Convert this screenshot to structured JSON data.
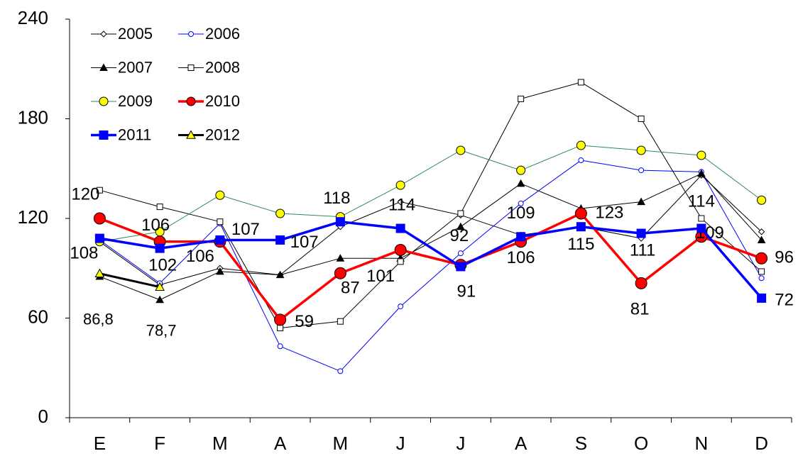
{
  "chart_data": {
    "type": "line",
    "categories": [
      "E",
      "F",
      "M",
      "A",
      "M",
      "J",
      "J",
      "A",
      "S",
      "O",
      "N",
      "D"
    ],
    "ylim": [
      0,
      240
    ],
    "yticks": [
      0,
      60,
      120,
      180,
      240
    ],
    "series": [
      {
        "name": "2005",
        "color": "#000000",
        "values": [
          106,
          80,
          90,
          86,
          115,
          130,
          122,
          110,
          115,
          108,
          146,
          112
        ]
      },
      {
        "name": "2006",
        "color": "#0000ff",
        "values": [
          107,
          81,
          117,
          43,
          28,
          67,
          99,
          129,
          155,
          149,
          148,
          84
        ]
      },
      {
        "name": "2007",
        "color": "#000000",
        "values": [
          85,
          71,
          88,
          86,
          96,
          96,
          115,
          141,
          126,
          130,
          147,
          107
        ]
      },
      {
        "name": "2008",
        "color": "#000000",
        "values": [
          137,
          127,
          118,
          54,
          58,
          94,
          123,
          192,
          202,
          180,
          120,
          88
        ]
      },
      {
        "name": "2009",
        "color": "#2e8b57",
        "values": [
          106,
          112,
          134,
          123,
          121,
          140,
          161,
          149,
          164,
          161,
          158,
          131
        ]
      },
      {
        "name": "2010",
        "color": "#ff0000",
        "values": [
          120,
          106,
          106,
          59,
          87,
          101,
          92,
          106,
          123,
          81,
          109,
          96
        ]
      },
      {
        "name": "2011",
        "color": "#0000ff",
        "values": [
          108,
          102,
          107,
          107,
          118,
          114,
          91,
          109,
          115,
          111,
          114,
          72
        ]
      },
      {
        "name": "2012",
        "color": "#000000",
        "values": [
          86.8,
          78.7,
          null,
          null,
          null,
          null,
          null,
          null,
          null,
          null,
          null,
          null
        ],
        "value_labels": [
          "86,8",
          "78,7",
          null,
          null,
          null,
          null,
          null,
          null,
          null,
          null,
          null,
          null
        ]
      }
    ]
  }
}
